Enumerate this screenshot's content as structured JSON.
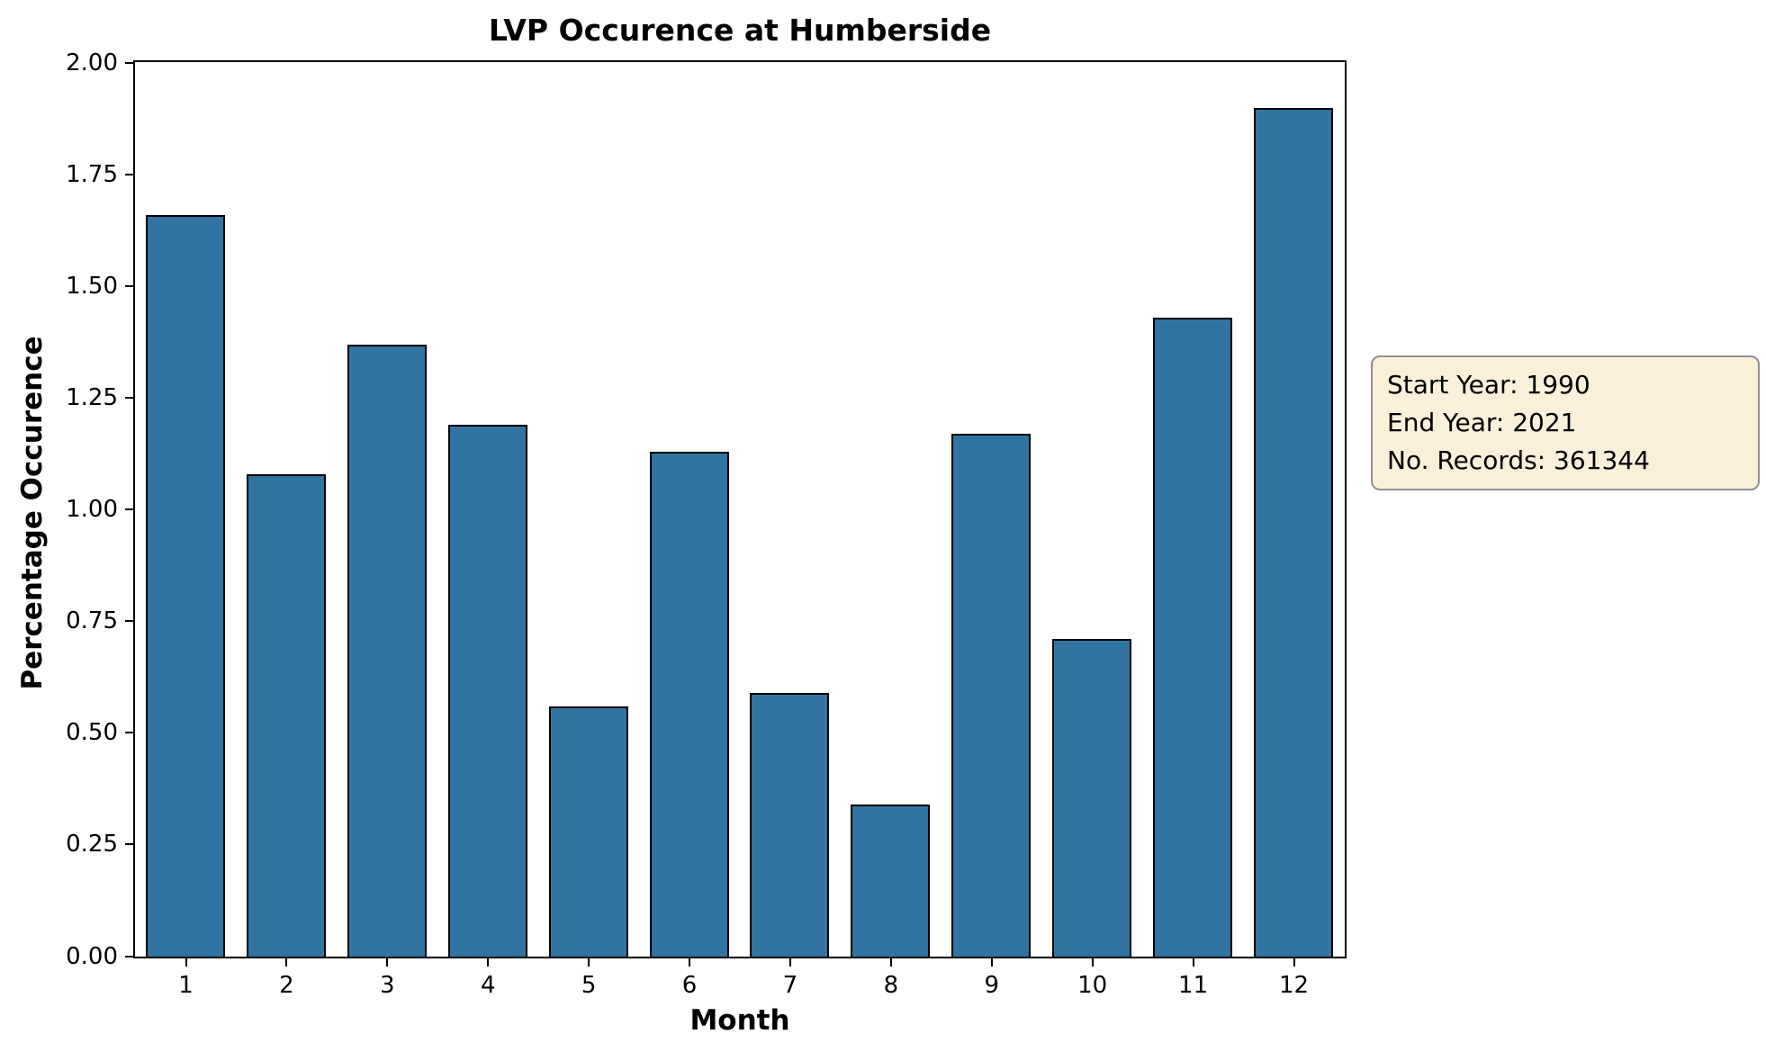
{
  "chart_data": {
    "type": "bar",
    "title": "LVP Occurence at Humberside",
    "xlabel": "Month",
    "ylabel": "Percentage Occurence",
    "categories": [
      "1",
      "2",
      "3",
      "4",
      "5",
      "6",
      "7",
      "8",
      "9",
      "10",
      "11",
      "12"
    ],
    "values": [
      1.66,
      1.08,
      1.37,
      1.19,
      0.56,
      1.13,
      0.59,
      0.34,
      1.17,
      0.71,
      1.43,
      1.9
    ],
    "ylim": [
      0.0,
      2.0
    ],
    "yticks": [
      "0.00",
      "0.25",
      "0.50",
      "0.75",
      "1.00",
      "1.25",
      "1.50",
      "1.75",
      "2.00"
    ],
    "grid": false,
    "legend_position": "none",
    "bar_color": "#3274a1",
    "bar_edge_color": "#000000"
  },
  "annotation_box": {
    "lines": [
      "Start Year: 1990",
      "End Year: 2021",
      "No. Records: 361344"
    ],
    "background_color": "#faefd9",
    "border_color": "#909090"
  }
}
